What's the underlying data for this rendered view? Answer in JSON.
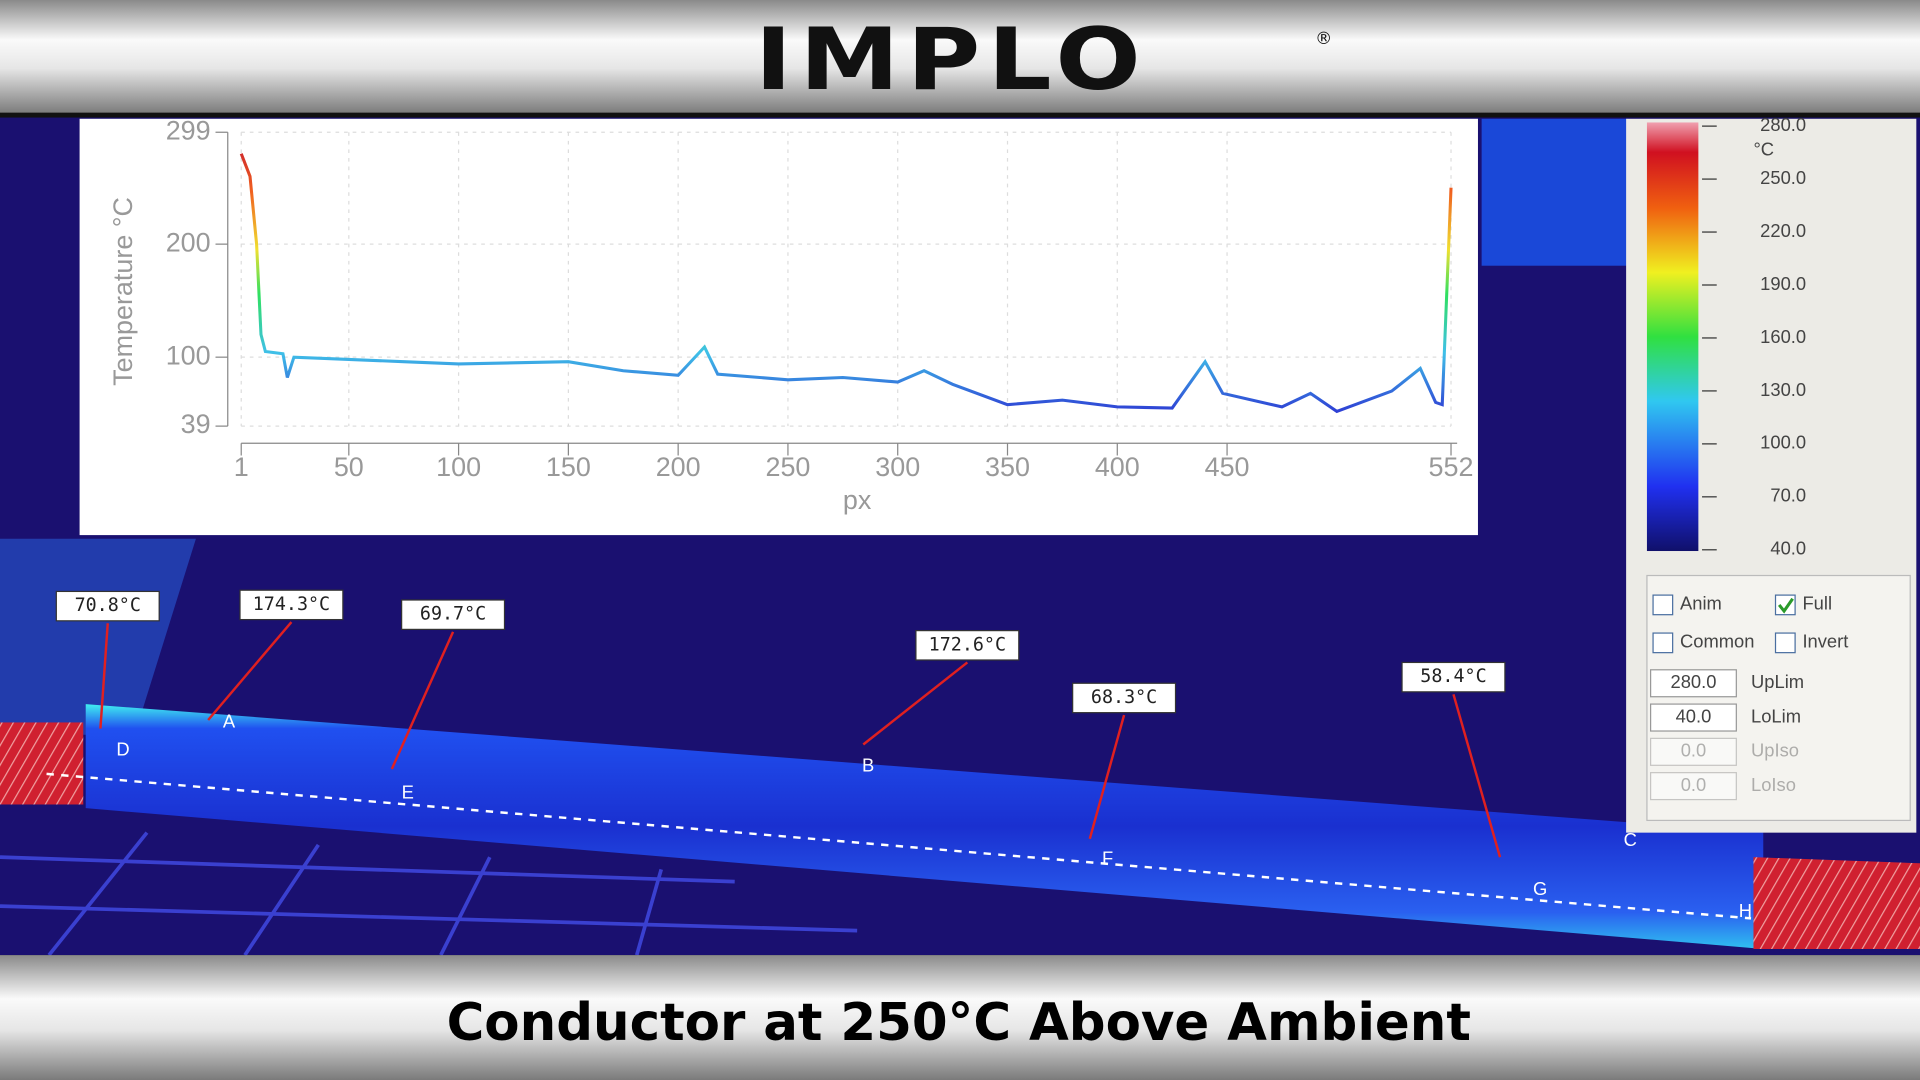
{
  "header": {
    "logo": "IMPLO",
    "mark": "®"
  },
  "caption": "Conductor at 250°C Above Ambient",
  "chart_data": {
    "type": "line",
    "ylabel": "Temperature °C",
    "xlabel": "px",
    "xlim": [
      1,
      552
    ],
    "ylim": [
      39,
      299
    ],
    "xticks": [
      1,
      50,
      100,
      150,
      200,
      250,
      300,
      350,
      400,
      450,
      552
    ],
    "yticks": [
      39,
      100,
      200,
      299
    ],
    "grid": true,
    "x": [
      1,
      5,
      8,
      10,
      12,
      20,
      22,
      25,
      50,
      75,
      100,
      125,
      150,
      175,
      200,
      212,
      218,
      250,
      275,
      300,
      312,
      325,
      350,
      375,
      400,
      425,
      440,
      448,
      475,
      488,
      500,
      525,
      538,
      545,
      548,
      552
    ],
    "series": [
      {
        "values": [
          280,
          260,
          200,
          120,
          105,
          103,
          82,
          100,
          98,
          96,
          94,
          95,
          96,
          88,
          84,
          109,
          85,
          80,
          82,
          78,
          88,
          76,
          58,
          62,
          56,
          55,
          96,
          68,
          56,
          68,
          52,
          70,
          90,
          60,
          58,
          250
        ]
      }
    ]
  },
  "color_scale": {
    "unit": "°C",
    "labels": [
      "280.0",
      "250.0",
      "220.0",
      "190.0",
      "160.0",
      "130.0",
      "100.0",
      "70.0",
      "40.0"
    ]
  },
  "options": [
    {
      "label": "Anim",
      "checked": false
    },
    {
      "label": "Full",
      "checked": true
    },
    {
      "label": "Common",
      "checked": false
    },
    {
      "label": "Invert",
      "checked": false
    }
  ],
  "limits": [
    {
      "value": "280.0",
      "label": "UpLim"
    },
    {
      "value": "40.0",
      "label": "LoLim"
    },
    {
      "value": "0.0",
      "label": "UpIso"
    },
    {
      "value": "0.0",
      "label": "LoIso"
    }
  ],
  "annotations": [
    "70.8°C",
    "174.3°C",
    "69.7°C",
    "172.6°C",
    "68.3°C",
    "58.4°C"
  ],
  "points": [
    "D",
    "A",
    "E",
    "B",
    "F",
    "C",
    "G",
    "H"
  ]
}
